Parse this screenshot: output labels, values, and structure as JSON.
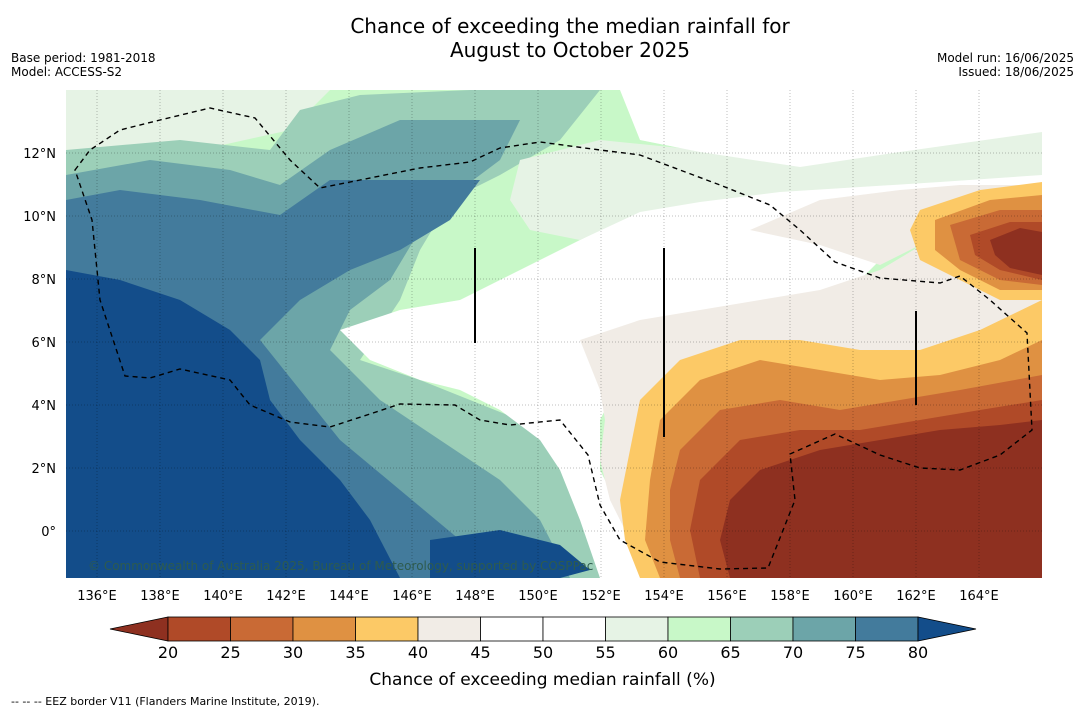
{
  "title_line1": "Chance of exceeding the median rainfall for",
  "title_line2": "August to October 2025",
  "base_period": "Base period: 1981-2018",
  "model": "Model: ACCESS-S2",
  "model_run": "Model run: 16/06/2025",
  "issued": "Issued: 18/06/2025",
  "copyright": "© Commonwealth of Australia 2025, Bureau of Meteorology, supported by COSPPac",
  "lon_ticks": [
    "136°E",
    "138°E",
    "140°E",
    "142°E",
    "144°E",
    "146°E",
    "148°E",
    "150°E",
    "152°E",
    "154°E",
    "156°E",
    "158°E",
    "160°E",
    "162°E",
    "164°E"
  ],
  "lat_ticks": [
    "12°N",
    "10°N",
    "8°N",
    "6°N",
    "4°N",
    "2°N",
    "0°"
  ],
  "colorbar": {
    "label": "Chance of exceeding median rainfall (%)",
    "ticks": [
      "20",
      "25",
      "30",
      "35",
      "40",
      "45",
      "50",
      "55",
      "60",
      "65",
      "70",
      "75",
      "80"
    ],
    "colors": [
      "#8e3020",
      "#b04a28",
      "#c96a35",
      "#df9142",
      "#fcc966",
      "#f1ece6",
      "#ffffff",
      "#ffffff",
      "#e6f3e5",
      "#c8f8c8",
      "#9ccfb8",
      "#6ca5a8",
      "#437b9c",
      "#1f5a90",
      "#134d8a"
    ]
  },
  "legend_note": "-- -- -- EEZ border V11 (Flanders Marine Institute, 2019)."
}
